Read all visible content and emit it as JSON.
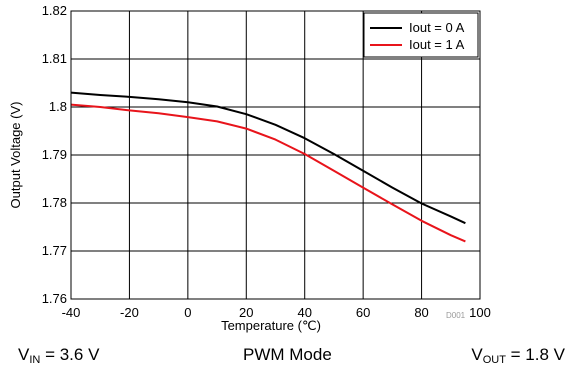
{
  "chart_data": {
    "type": "line",
    "xlabel": "Temperature (℃)",
    "ylabel": "Output Voltage (V)",
    "xlim": [
      -40,
      100
    ],
    "ylim": [
      1.76,
      1.82
    ],
    "x_ticks": [
      "-40",
      "-20",
      "0",
      "20",
      "40",
      "60",
      "80",
      "100"
    ],
    "y_ticks": [
      "1.76",
      "1.77",
      "1.78",
      "1.79",
      "1.8",
      "1.81",
      "1.82"
    ],
    "grid": true,
    "legend_position": "top-right",
    "series": [
      {
        "name": "Iout = 0 A",
        "color": "#000000",
        "x": [
          -40,
          -30,
          -20,
          -10,
          0,
          10,
          20,
          30,
          40,
          50,
          60,
          70,
          80,
          90,
          95
        ],
        "y": [
          1.803,
          1.8025,
          1.8021,
          1.8016,
          1.801,
          1.8001,
          1.7985,
          1.7963,
          1.7935,
          1.7902,
          1.7867,
          1.7832,
          1.7799,
          1.7772,
          1.7758
        ]
      },
      {
        "name": "Iout = 1 A",
        "color": "#e8141b",
        "x": [
          -40,
          -30,
          -20,
          -10,
          0,
          10,
          20,
          30,
          40,
          50,
          60,
          70,
          80,
          90,
          95
        ],
        "y": [
          1.8005,
          1.8,
          1.7993,
          1.7987,
          1.7979,
          1.797,
          1.7955,
          1.7932,
          1.7902,
          1.7867,
          1.7832,
          1.7797,
          1.7763,
          1.7733,
          1.772
        ]
      }
    ],
    "figure_id": "D001"
  },
  "conditions": {
    "vin_label": "V",
    "vin_sub": "IN",
    "vin_value": " = 3.6 V",
    "mode": "PWM Mode",
    "vout_label": "V",
    "vout_sub": "OUT",
    "vout_value": " = 1.8 V"
  }
}
